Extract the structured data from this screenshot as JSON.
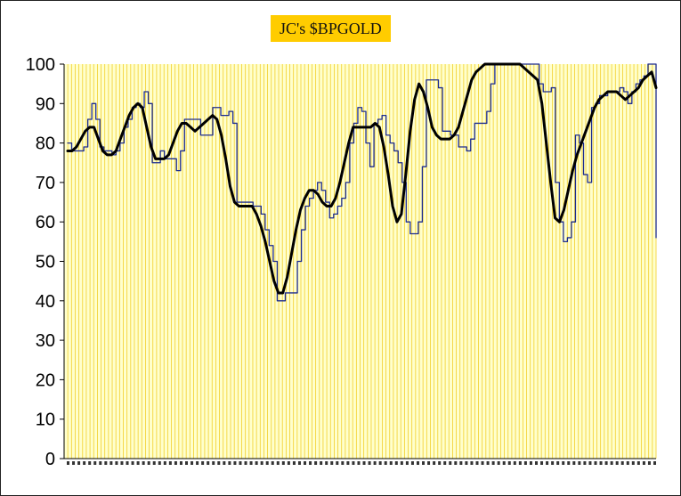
{
  "colors": {
    "plot_background": "#FFFFCC",
    "gridline": "#F2CF2A",
    "title_background": "#FFCC00",
    "raw_series": "#1C2B8F",
    "smooth_series": "#000000"
  },
  "chart_data": {
    "type": "line",
    "title": "JC's $BPGOLD",
    "xlabel": "",
    "ylabel": "",
    "ylim": [
      0,
      100
    ],
    "yticks": [
      0,
      10,
      20,
      30,
      40,
      50,
      60,
      70,
      80,
      90,
      100
    ],
    "grid": "vertical",
    "legend": "none",
    "x_tick_labels_note": "dense unreadable date labels",
    "series": [
      {
        "style": "step",
        "color": "#1C2B8F",
        "values": [
          80,
          78,
          78,
          78,
          79,
          86,
          90,
          86,
          79,
          78,
          78,
          77,
          78,
          80,
          84,
          86,
          89,
          90,
          89,
          93,
          90,
          75,
          75,
          78,
          76,
          76,
          76,
          73,
          78,
          86,
          86,
          86,
          86,
          82,
          82,
          82,
          89,
          89,
          87,
          87,
          88,
          85,
          65,
          65,
          65,
          65,
          64,
          64,
          62,
          58,
          54,
          50,
          40,
          40,
          42,
          42,
          42,
          50,
          58,
          64,
          66,
          68,
          70,
          68,
          65,
          61,
          62,
          64,
          66,
          70,
          80,
          85,
          89,
          88,
          80,
          74,
          85,
          86,
          87,
          82,
          80,
          78,
          75,
          70,
          60,
          57,
          57,
          60,
          74,
          96,
          96,
          96,
          94,
          83,
          83,
          82,
          82,
          79,
          79,
          78,
          81,
          85,
          85,
          85,
          88,
          95,
          100,
          100,
          100,
          100,
          100,
          100,
          100,
          100,
          100,
          100,
          100,
          95,
          93,
          93,
          94,
          70,
          60,
          55,
          56,
          60,
          82,
          80,
          72,
          70,
          89,
          90,
          92,
          92,
          93,
          93,
          93,
          94,
          93,
          90,
          93,
          95,
          96,
          97,
          100,
          100,
          56
        ]
      },
      {
        "style": "smooth",
        "color": "#000000",
        "values": [
          78,
          78,
          79,
          81,
          83,
          84,
          84,
          81,
          78,
          77,
          77,
          78,
          81,
          84,
          87,
          89,
          90,
          89,
          84,
          79,
          76,
          76,
          76,
          77,
          80,
          83,
          85,
          85,
          84,
          83,
          84,
          85,
          86,
          87,
          86,
          82,
          76,
          69,
          65,
          64,
          64,
          64,
          64,
          62,
          59,
          55,
          50,
          45,
          42,
          42,
          46,
          52,
          58,
          63,
          66,
          68,
          68,
          67,
          65,
          64,
          64,
          66,
          70,
          75,
          80,
          84,
          84,
          84,
          84,
          84,
          85,
          84,
          79,
          72,
          64,
          60,
          62,
          72,
          83,
          91,
          95,
          93,
          89,
          84,
          82,
          81,
          81,
          81,
          82,
          84,
          88,
          92,
          96,
          98,
          99,
          100,
          100,
          100,
          100,
          100,
          100,
          100,
          100,
          100,
          99,
          98,
          97,
          96,
          90,
          80,
          70,
          61,
          60,
          63,
          68,
          73,
          77,
          80,
          83,
          86,
          89,
          91,
          92,
          93,
          93,
          93,
          92,
          91,
          92,
          93,
          94,
          96,
          97,
          98,
          94
        ]
      }
    ]
  }
}
